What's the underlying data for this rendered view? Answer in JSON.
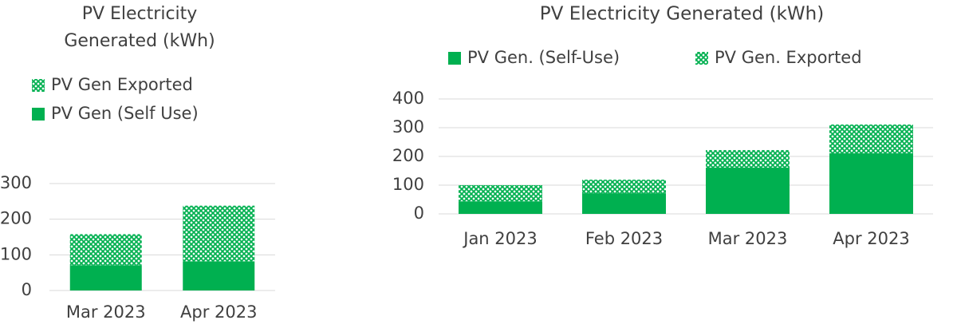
{
  "chart_data": [
    {
      "type": "stacked_bar",
      "title": [
        "PV Electricity",
        "Generated (kWh)"
      ],
      "categories": [
        "Mar 2023",
        "Apr 2023"
      ],
      "series": [
        {
          "name": "PV Gen (Self Use)",
          "color": "#00b050",
          "fill": "solid",
          "values": [
            71,
            82
          ]
        },
        {
          "name": "PV Gen Exported",
          "color": "#00b050",
          "fill": "hatch",
          "values": [
            87,
            156
          ]
        }
      ],
      "ylim": [
        0,
        300
      ],
      "yticks": [
        0,
        100,
        200,
        300
      ],
      "grid": true,
      "legend": "top",
      "legend_reversed": true
    },
    {
      "type": "stacked_bar",
      "title": [
        "PV Electricity Generated (kWh)"
      ],
      "categories": [
        "Jan 2023",
        "Feb 2023",
        "Mar 2023",
        "Apr 2023"
      ],
      "series": [
        {
          "name": "PV Gen. (Self-Use)",
          "color": "#00b050",
          "fill": "solid",
          "values": [
            44,
            72,
            161,
            211
          ]
        },
        {
          "name": "PV Gen. Exported",
          "color": "#00b050",
          "fill": "hatch",
          "values": [
            56,
            47,
            61,
            100
          ]
        }
      ],
      "ylim": [
        0,
        400
      ],
      "yticks": [
        0,
        100,
        200,
        300,
        400
      ],
      "grid": true,
      "legend": "top",
      "legend_reversed": false
    }
  ]
}
